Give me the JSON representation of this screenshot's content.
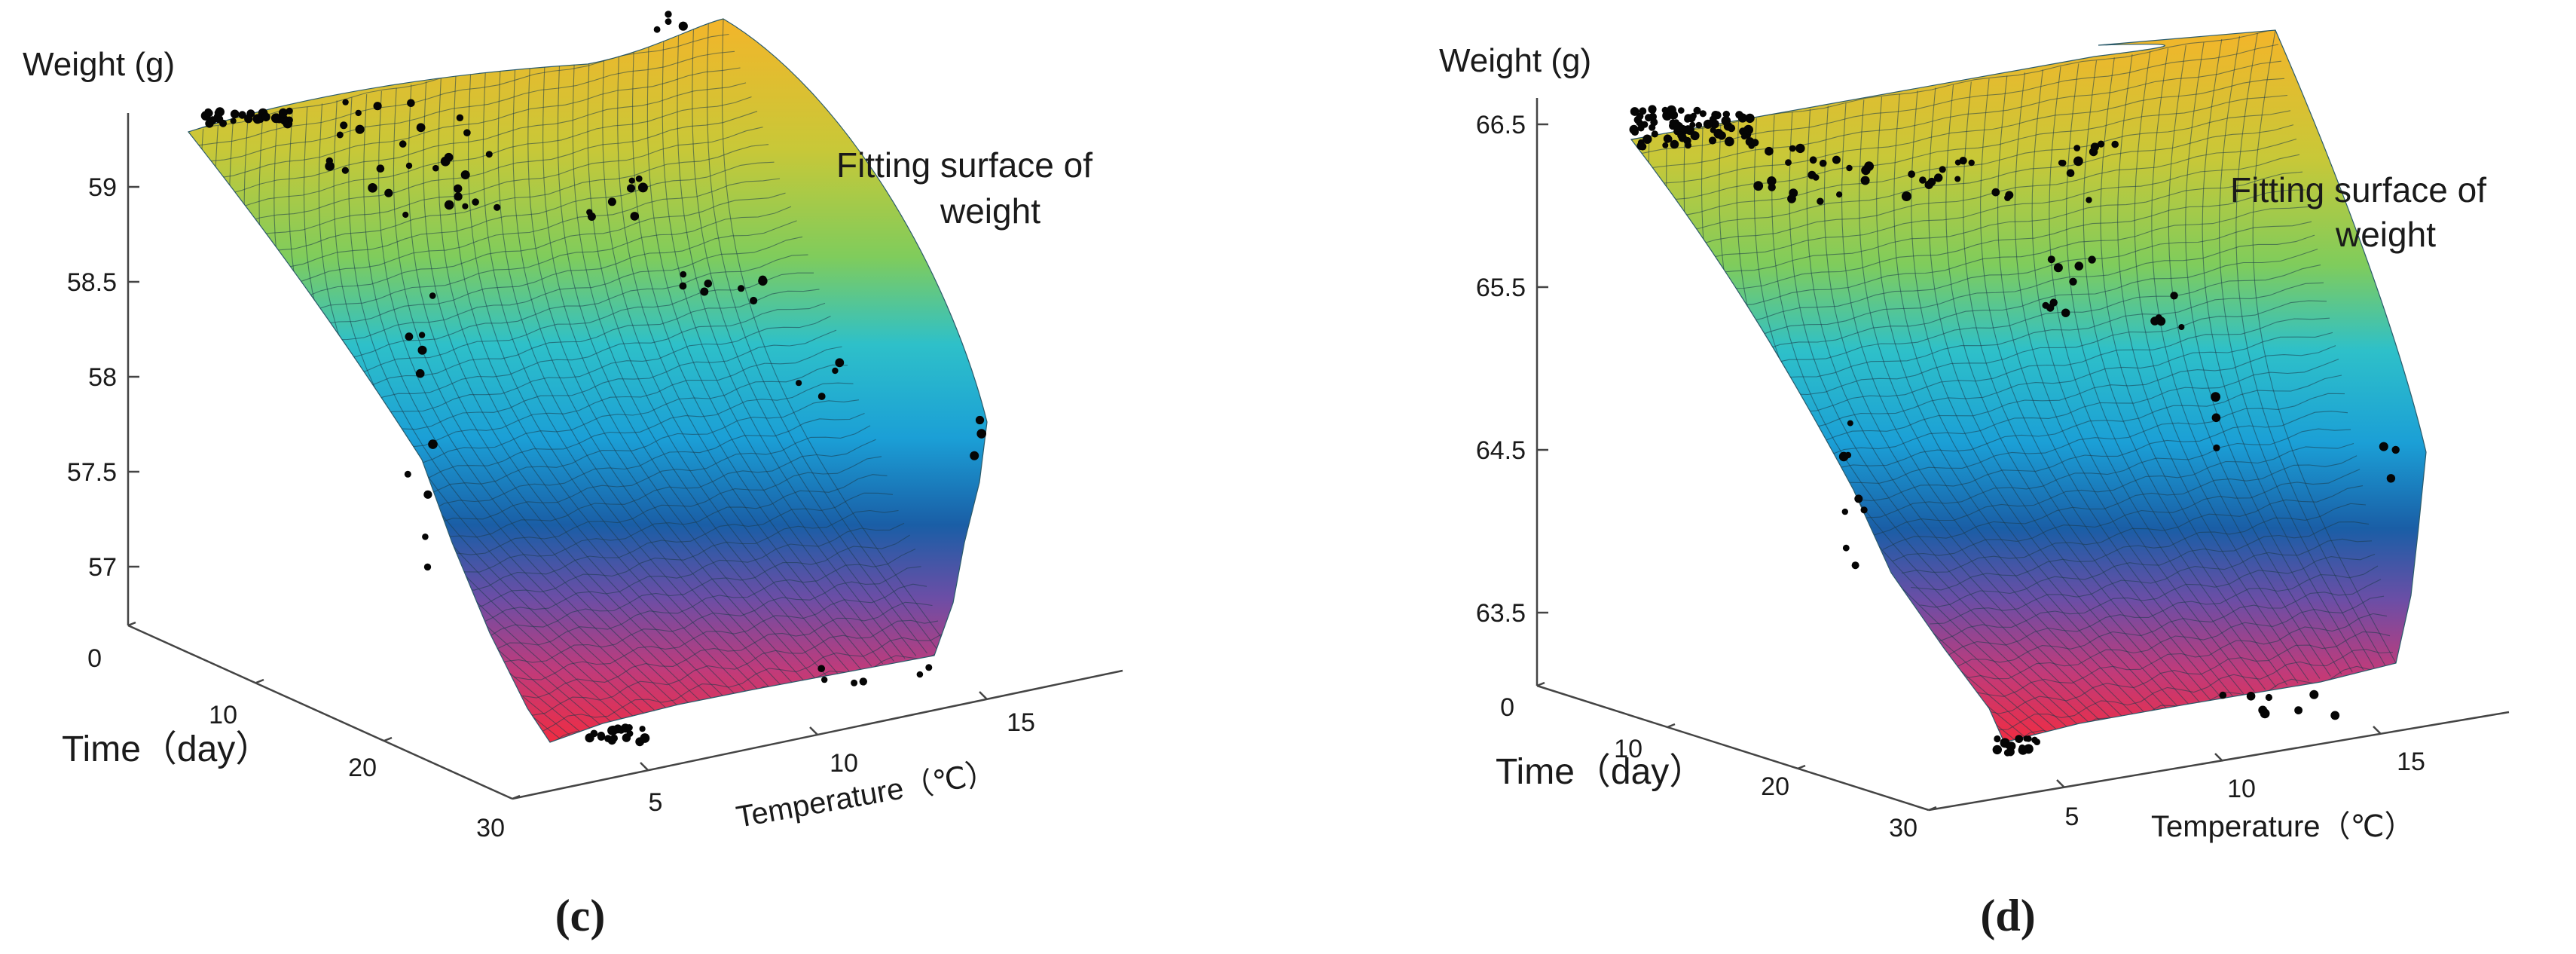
{
  "chart_data": [
    {
      "type": "surface3d",
      "panel_label": "c",
      "title": "Weight (g)",
      "annotation_line1": "Fitting surface of",
      "annotation_line2": "weight",
      "xlabel": "Temperature（℃）",
      "ylabel": "Time（day）",
      "zlabel": "Weight (g)",
      "x_ticks": [
        "5",
        "10",
        "15"
      ],
      "y_ticks": [
        "0",
        "10",
        "20",
        "30"
      ],
      "z_ticks": [
        "57",
        "57.5",
        "58",
        "58.5",
        "59"
      ],
      "x_range": [
        2,
        20
      ],
      "y_range": [
        0,
        30
      ],
      "z_range": [
        56.7,
        59.3
      ],
      "surface": {
        "description_values": "weight decreases with time; temperature has small effect",
        "z_at_day0": 59.2,
        "z_at_day30": 56.8
      },
      "colormap": [
        "#f6c42f",
        "#9acb3a",
        "#1ec0df",
        "#1a5fa8",
        "#8a4aa8",
        "#ee2d48"
      ]
    },
    {
      "type": "surface3d",
      "panel_label": "d",
      "title": "Weight (g)",
      "annotation_line1": "Fitting surface of",
      "annotation_line2": "weight",
      "xlabel": "Temperature（℃）",
      "ylabel": "Time（day）",
      "zlabel": "Weight (g)",
      "x_ticks": [
        "5",
        "10",
        "15"
      ],
      "y_ticks": [
        "0",
        "10",
        "20",
        "30"
      ],
      "z_ticks": [
        "63.5",
        "64.5",
        "65.5",
        "66.5"
      ],
      "x_range": [
        2,
        20
      ],
      "y_range": [
        0,
        30
      ],
      "z_range": [
        63.0,
        66.6
      ],
      "surface": {
        "description_values": "weight decreases with time; temperature has small effect",
        "z_at_day0": 66.5,
        "z_at_day30": 63.2
      },
      "colormap": [
        "#f6c42f",
        "#9acb3a",
        "#1ec0df",
        "#1a5fa8",
        "#8a4aa8",
        "#ee2d48"
      ]
    }
  ]
}
